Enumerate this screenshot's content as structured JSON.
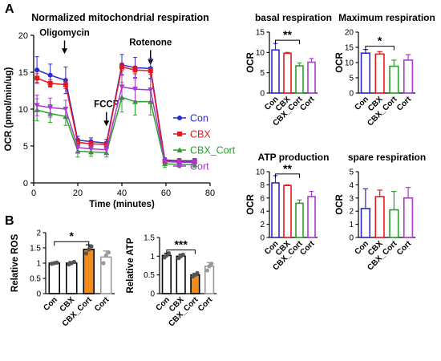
{
  "panel_labels": [
    "A",
    "B"
  ],
  "colors": {
    "Con": "#2a2ad8",
    "CBX": "#e8171d",
    "CBX_Cort": "#27a327",
    "Cort": "#a93ad0",
    "black": "#000000",
    "orange": "#f28a1c",
    "grey": "#9a9a9a"
  },
  "chart_data": [
    {
      "id": "ocr-time",
      "type": "line",
      "title": "Normalized mitochondrial respiration",
      "xlabel": "Time (minutes)",
      "ylabel": "OCR (pmol/min/ug)",
      "xlim": [
        0,
        80
      ],
      "ylim": [
        0,
        20
      ],
      "xticks": [
        0,
        20,
        40,
        60,
        80
      ],
      "yticks": [
        0,
        5,
        10,
        15,
        20
      ],
      "annotations": [
        {
          "text": "Oligomycin",
          "x": 14,
          "arrow_from": 19.3,
          "arrow_to": 17.8
        },
        {
          "text": "FCCP",
          "x": 33,
          "arrow_from": 9.6,
          "arrow_to": 8.0
        },
        {
          "text": "Rotenone",
          "x": 53,
          "arrow_from": 18.0,
          "arrow_to": 16.3
        }
      ],
      "legend_position": "right",
      "x": [
        1.5,
        7.5,
        14.5,
        20,
        26,
        33,
        40,
        46,
        53,
        59.5,
        66,
        73
      ],
      "series": [
        {
          "name": "Con",
          "color": "#2a2ad8",
          "marker": "circle",
          "values": [
            15.3,
            14.6,
            13.9,
            5.8,
            5.6,
            5.4,
            16.0,
            15.6,
            15.5,
            3.1,
            3.0,
            3.0
          ],
          "errors": [
            1.8,
            1.5,
            1.8,
            0.5,
            0.5,
            0.5,
            1.4,
            1.4,
            1.4,
            0.3,
            0.3,
            0.3
          ]
        },
        {
          "name": "CBX",
          "color": "#e8171d",
          "marker": "square",
          "values": [
            14.2,
            13.5,
            13.3,
            5.5,
            5.3,
            5.2,
            15.7,
            15.3,
            15.2,
            2.9,
            2.9,
            2.9
          ],
          "errors": [
            0.6,
            0.5,
            0.5,
            0.3,
            0.3,
            0.3,
            0.5,
            0.5,
            0.5,
            0.2,
            0.2,
            0.2
          ]
        },
        {
          "name": "CBX_Cort",
          "color": "#27a327",
          "marker": "triangle",
          "values": [
            9.9,
            9.4,
            9.0,
            4.3,
            4.2,
            4.1,
            11.6,
            11.0,
            11.0,
            2.6,
            2.5,
            2.5
          ],
          "errors": [
            1.5,
            1.2,
            1.2,
            0.8,
            0.6,
            0.6,
            2.0,
            1.8,
            1.8,
            0.5,
            0.4,
            0.4
          ]
        },
        {
          "name": "Cort",
          "color": "#a93ad0",
          "marker": "triangle-down",
          "values": [
            10.5,
            10.2,
            10.0,
            4.8,
            4.6,
            4.5,
            13.0,
            12.7,
            12.6,
            2.9,
            2.8,
            2.8
          ],
          "errors": [
            1.4,
            1.3,
            1.2,
            0.7,
            0.6,
            0.6,
            1.7,
            1.6,
            1.6,
            0.4,
            0.4,
            0.4
          ]
        }
      ]
    },
    {
      "id": "basal",
      "type": "bar",
      "title": "basal respiration",
      "ylabel": "OCR",
      "categories": [
        "Con",
        "CBX",
        "CBX_Cort",
        "Cort"
      ],
      "values": [
        10.6,
        9.8,
        6.7,
        7.6
      ],
      "errors": [
        1.6,
        0.2,
        0.7,
        0.9
      ],
      "ylim": [
        0,
        15
      ],
      "yticks": [
        0,
        5,
        10,
        15
      ],
      "colors": [
        "#2a2ad8",
        "#e8171d",
        "#27a327",
        "#a93ad0"
      ],
      "significance": [
        {
          "from": 0,
          "to": 2,
          "label": "**"
        }
      ]
    },
    {
      "id": "maximum",
      "type": "bar",
      "title": "Maximum respiration",
      "ylabel": "OCR",
      "categories": [
        "Con",
        "CBX",
        "CBX_Cort",
        "Cort"
      ],
      "values": [
        13.1,
        12.8,
        8.8,
        10.8
      ],
      "errors": [
        1.2,
        0.8,
        2.0,
        1.8
      ],
      "ylim": [
        0,
        20
      ],
      "yticks": [
        0,
        5,
        10,
        15,
        20
      ],
      "colors": [
        "#2a2ad8",
        "#e8171d",
        "#27a327",
        "#a93ad0"
      ],
      "significance": [
        {
          "from": 0,
          "to": 2,
          "label": "*"
        }
      ]
    },
    {
      "id": "atp",
      "type": "bar",
      "title": "ATP production",
      "ylabel": "OCR",
      "categories": [
        "Con",
        "CBX",
        "CBX_Cort",
        "Cort"
      ],
      "values": [
        8.3,
        7.9,
        5.2,
        6.2
      ],
      "errors": [
        1.1,
        0.1,
        0.5,
        0.8
      ],
      "ylim": [
        0,
        10
      ],
      "yticks": [
        0,
        2,
        4,
        6,
        8,
        10
      ],
      "colors": [
        "#2a2ad8",
        "#e8171d",
        "#27a327",
        "#a93ad0"
      ],
      "significance": [
        {
          "from": 0,
          "to": 2,
          "label": "**"
        }
      ]
    },
    {
      "id": "spare",
      "type": "bar",
      "title": "spare respiration",
      "ylabel": "OCR",
      "categories": [
        "Con",
        "CBX",
        "CBX_Cort",
        "Cort"
      ],
      "values": [
        2.2,
        3.1,
        2.1,
        3.0
      ],
      "errors": [
        1.5,
        0.5,
        1.4,
        0.8
      ],
      "ylim": [
        0,
        5
      ],
      "yticks": [
        0,
        1,
        2,
        3,
        4,
        5
      ],
      "colors": [
        "#2a2ad8",
        "#e8171d",
        "#27a327",
        "#a93ad0"
      ],
      "significance": []
    },
    {
      "id": "ros",
      "type": "bar",
      "title": "",
      "ylabel": "Relative ROS",
      "categories": [
        "Con",
        "CBX",
        "CBX_Cort",
        "Cort"
      ],
      "values": [
        1.0,
        1.0,
        1.45,
        1.2
      ],
      "errors": [
        0.02,
        0.05,
        0.15,
        0.2
      ],
      "points": [
        [
          0.98,
          1.0,
          1.02
        ],
        [
          0.96,
          1.0,
          1.04
        ],
        [
          1.32,
          1.45,
          1.55
        ],
        [
          1.0,
          1.25,
          1.35
        ]
      ],
      "ylim": [
        0,
        2.0
      ],
      "yticks": [
        0,
        0.5,
        1.0,
        1.5,
        2.0
      ],
      "fills": [
        "#ffffff",
        "#ffffff",
        "#f28a1c",
        "#ffffff"
      ],
      "edges": [
        "#000000",
        "#000000",
        "#000000",
        "#9a9a9a"
      ],
      "significance": [
        {
          "from": 0,
          "to": 2,
          "label": "*"
        }
      ]
    },
    {
      "id": "atp-rel",
      "type": "bar",
      "title": "",
      "ylabel": "Relative ATP",
      "categories": [
        "Con",
        "CBX",
        "CBX_Cort",
        "Cort"
      ],
      "values": [
        1.02,
        1.0,
        0.5,
        0.73
      ],
      "errors": [
        0.06,
        0.05,
        0.04,
        0.1
      ],
      "points": [
        [
          0.97,
          1.02,
          1.08
        ],
        [
          0.95,
          1.0,
          1.04
        ],
        [
          0.46,
          0.5,
          0.55
        ],
        [
          0.62,
          0.73,
          0.8
        ]
      ],
      "ylim": [
        0,
        1.5
      ],
      "yticks": [
        0,
        0.5,
        1.0,
        1.5
      ],
      "fills": [
        "#ffffff",
        "#ffffff",
        "#f28a1c",
        "#ffffff"
      ],
      "edges": [
        "#000000",
        "#000000",
        "#000000",
        "#9a9a9a"
      ],
      "significance": [
        {
          "from": 0,
          "to": 2,
          "label": "***"
        }
      ]
    }
  ]
}
